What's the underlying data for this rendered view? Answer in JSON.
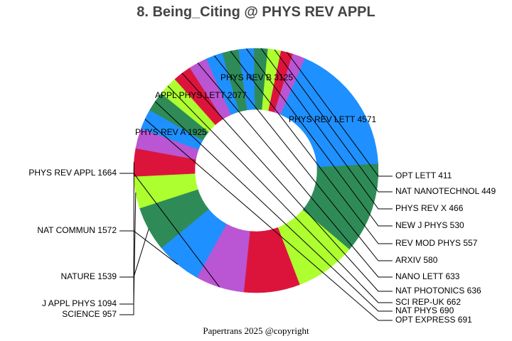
{
  "chart_data": {
    "type": "pie",
    "variant": "donut",
    "title": "8. Being_Citing @ PHYS REV APPL",
    "start_angle_deg": 23.5,
    "slices": [
      {
        "label": "PHYS REV LETT 4571",
        "name": "PHYS REV LETT",
        "value": 4571,
        "color": "#1E90FF",
        "label_pos": "inside"
      },
      {
        "label": "PHYS REV B 3125",
        "name": "PHYS REV B",
        "value": 3125,
        "color": "#2E8B57",
        "label_pos": "inside"
      },
      {
        "label": "APPL PHYS LETT 2077",
        "name": "APPL PHYS LETT",
        "value": 2077,
        "color": "#ADFF2F",
        "label_pos": "inside"
      },
      {
        "label": "PHYS REV A 1925",
        "name": "PHYS REV A",
        "value": 1925,
        "color": "#DC143C",
        "label_pos": "inside"
      },
      {
        "label": "PHYS REV APPL 1664",
        "name": "PHYS REV APPL",
        "value": 1664,
        "color": "#BA55D3",
        "label_pos": "left"
      },
      {
        "label": "NAT COMMUN 1572",
        "name": "NAT COMMUN",
        "value": 1572,
        "color": "#1E90FF",
        "label_pos": "left"
      },
      {
        "label": "NATURE 1539",
        "name": "NATURE",
        "value": 1539,
        "color": "#2E8B57",
        "label_pos": "left"
      },
      {
        "label": "J APPL PHYS 1094",
        "name": "J APPL PHYS",
        "value": 1094,
        "color": "#ADFF2F",
        "label_pos": "left"
      },
      {
        "label": "SCIENCE 957",
        "name": "SCIENCE",
        "value": 957,
        "color": "#DC143C",
        "label_pos": "left"
      },
      {
        "label": "",
        "name": "",
        "value": 691,
        "color": "#BA55D3",
        "label_pos": "none"
      },
      {
        "label": "OPT EXPRESS 691",
        "name": "OPT EXPRESS",
        "value": 691,
        "color": "#1E90FF",
        "label_pos": "right"
      },
      {
        "label": "NAT PHYS 690",
        "name": "NAT PHYS",
        "value": 690,
        "color": "#2E8B57",
        "label_pos": "right"
      },
      {
        "label": "SCI REP-UK 662",
        "name": "SCI REP-UK",
        "value": 662,
        "color": "#ADFF2F",
        "label_pos": "right"
      },
      {
        "label": "NAT PHOTONICS 636",
        "name": "NAT PHOTONICS",
        "value": 636,
        "color": "#DC143C",
        "label_pos": "right"
      },
      {
        "label": "NANO LETT 633",
        "name": "NANO LETT",
        "value": 633,
        "color": "#BA55D3",
        "label_pos": "right"
      },
      {
        "label": "ARXIV 580",
        "name": "ARXIV",
        "value": 580,
        "color": "#1E90FF",
        "label_pos": "right"
      },
      {
        "label": "REV MOD PHYS 557",
        "name": "REV MOD PHYS",
        "value": 557,
        "color": "#2E8B57",
        "label_pos": "right"
      },
      {
        "label": "NEW J PHYS 530",
        "name": "NEW J PHYS",
        "value": 530,
        "color": "#1E90FF",
        "label_pos": "right"
      },
      {
        "label": "PHYS REV X 466",
        "name": "PHYS REV X",
        "value": 466,
        "color": "#2E8B57",
        "label_pos": "right"
      },
      {
        "label": "NAT NANOTECHNOL 449",
        "name": "NAT NANOTECHNOL",
        "value": 449,
        "color": "#ADFF2F",
        "label_pos": "right"
      },
      {
        "label": "OPT LETT 411",
        "name": "OPT LETT",
        "value": 411,
        "color": "#DC143C",
        "label_pos": "right"
      },
      {
        "label": "",
        "name": "",
        "value": 430,
        "color": "#BA55D3",
        "label_pos": "none"
      }
    ]
  },
  "footer": "Papertrans 2025 @copyright"
}
